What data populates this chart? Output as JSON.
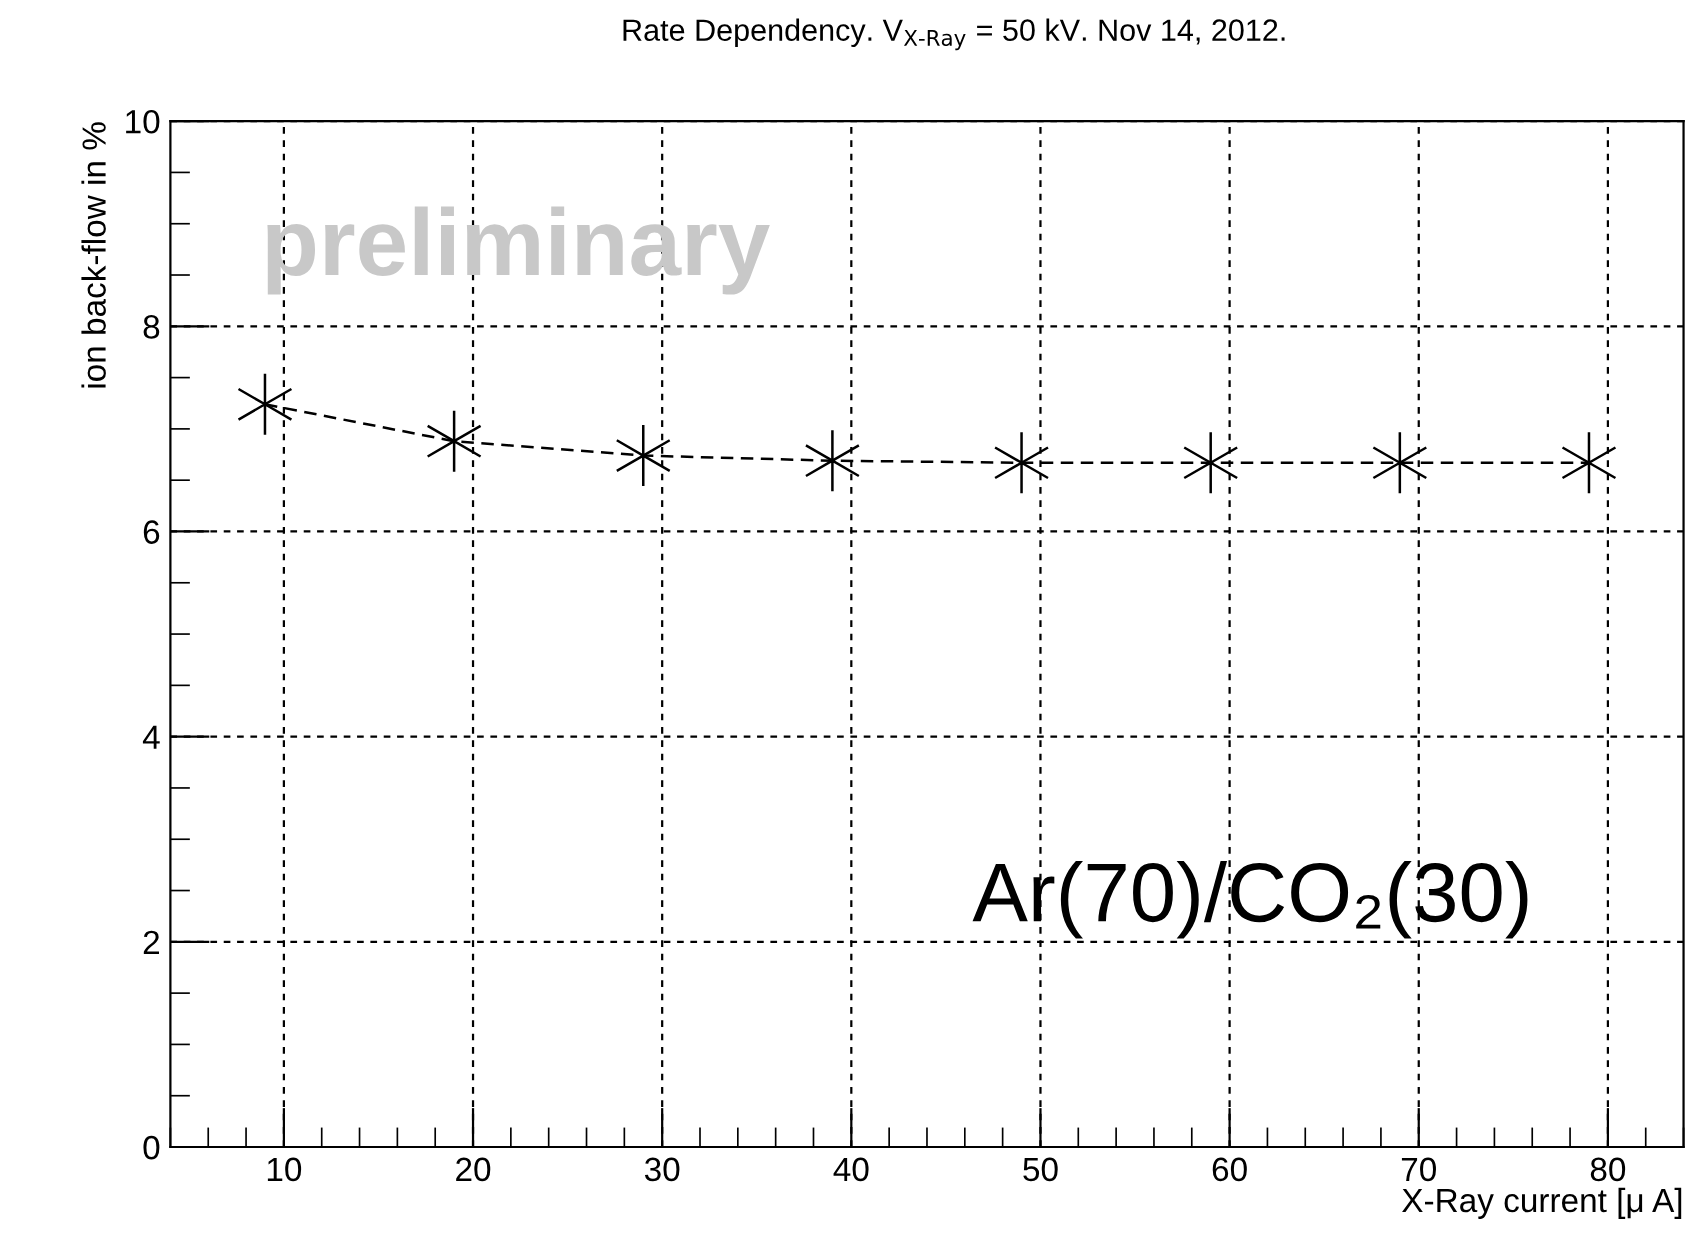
{
  "chart_data": {
    "type": "line",
    "title": "Rate Dependency. V$_{X-Ray}$ = 50 kV. Nov 14, 2012.",
    "xlabel": "X-Ray current [μ A]",
    "ylabel": "ion back-flow in %",
    "x": [
      9,
      19,
      29,
      39,
      49,
      59,
      69,
      79
    ],
    "series": [
      {
        "color": "#000000",
        "values": [
          7.24,
          6.88,
          6.74,
          6.69,
          6.67,
          6.67,
          6.67,
          6.67
        ]
      }
    ],
    "marker": "cross",
    "line_style": "dashed",
    "xlim": [
      4,
      84
    ],
    "ylim": [
      0,
      10
    ],
    "xticks": [
      10,
      20,
      30,
      40,
      50,
      60,
      70,
      80
    ],
    "yticks": [
      0,
      2,
      4,
      6,
      8,
      10
    ],
    "grid": true,
    "legend": false,
    "annotations": [
      "preliminary",
      "Ar(70)/CO₂(30)"
    ]
  }
}
